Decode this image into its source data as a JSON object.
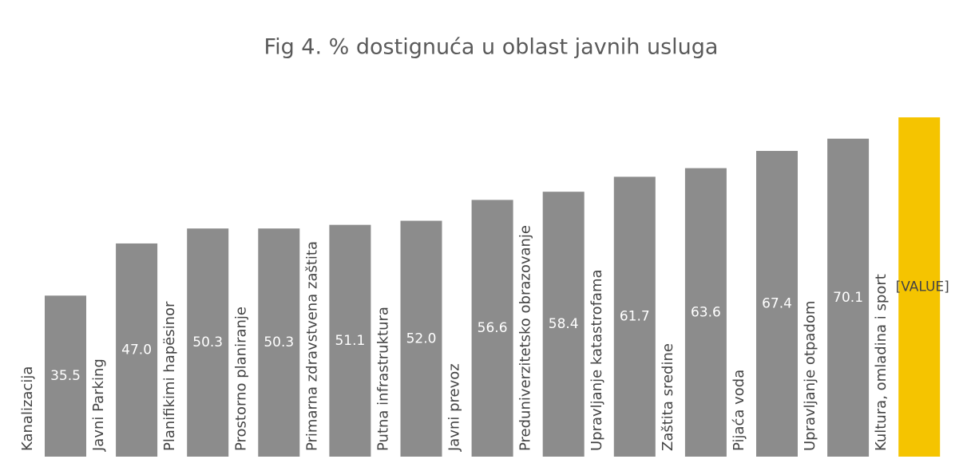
{
  "chart_data": {
    "type": "bar",
    "title": "Fig 4. % dostignuća u oblast javnih usluga",
    "categories": [
      "Kanalizacija",
      "Javni Parking",
      "Planifikimi hapësinor",
      "Prostorno planiranje",
      "Primarna zdravstvena zaštita",
      "Putna infrastruktura",
      "Javni prevoz",
      "Preduniverzitetsko obrazovanje",
      "Upravljanje katastrofama",
      "Zaštita sredine",
      "Pijaća voda",
      "Upravljanje otpadom",
      "Kultura, omladina i sport"
    ],
    "values": [
      35.5,
      47.0,
      50.3,
      50.3,
      51.1,
      52.0,
      56.6,
      58.4,
      61.7,
      63.6,
      67.4,
      70.1,
      74.8
    ],
    "value_labels": [
      "35.5",
      "47.0",
      "50.3",
      "50.3",
      "51.1",
      "52.0",
      "56.6",
      "58.4",
      "61.7",
      "63.6",
      "67.4",
      "70.1",
      "[VALUE]"
    ],
    "colors": [
      "#8c8c8c",
      "#8c8c8c",
      "#8c8c8c",
      "#8c8c8c",
      "#8c8c8c",
      "#8c8c8c",
      "#8c8c8c",
      "#8c8c8c",
      "#8c8c8c",
      "#8c8c8c",
      "#8c8c8c",
      "#8c8c8c",
      "#f5c400"
    ]
  }
}
